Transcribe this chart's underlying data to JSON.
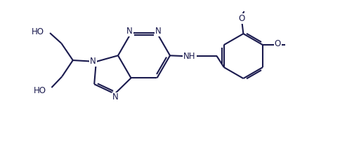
{
  "bg_color": "#ffffff",
  "line_color": "#1a1a4e",
  "line_width": 1.5,
  "font_size": 8.5,
  "figsize": [
    4.84,
    2.17
  ],
  "dpi": 100,
  "xlim": [
    0.0,
    11.5
  ],
  "ylim": [
    -0.3,
    5.2
  ]
}
